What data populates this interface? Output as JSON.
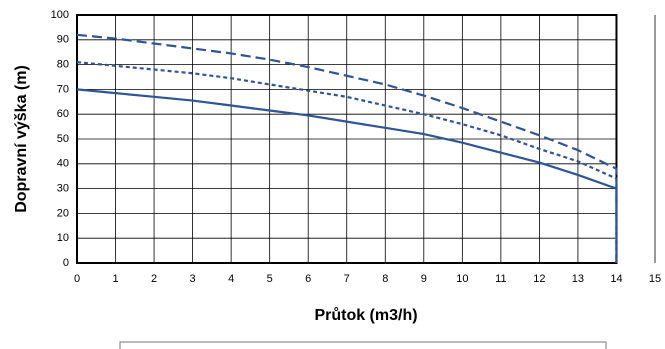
{
  "chart_data": {
    "type": "line",
    "x_label": "Průtok (m3/h)",
    "y_label": "Dopravní výška (m)",
    "xlim": [
      0,
      15
    ],
    "xticks": [
      0,
      1,
      2,
      3,
      4,
      5,
      6,
      7,
      8,
      9,
      10,
      11,
      12,
      13,
      14,
      15
    ],
    "ylim": [
      0,
      100
    ],
    "yticks": [
      0,
      10,
      20,
      30,
      40,
      50,
      60,
      70,
      80,
      90,
      100
    ],
    "grid": true,
    "series": [
      {
        "color": "#2f5597",
        "dash": "solid",
        "x": [
          0,
          1,
          2,
          3,
          4,
          5,
          6,
          7,
          8,
          9,
          10,
          11,
          12,
          13,
          14,
          14
        ],
        "values": [
          70,
          68.5,
          67,
          65.5,
          63.5,
          61.5,
          59.5,
          57,
          54.5,
          52,
          48.5,
          44.5,
          40.5,
          35.5,
          30,
          0
        ]
      },
      {
        "color": "#2f5597",
        "dash": "short",
        "x": [
          0,
          1,
          2,
          3,
          4,
          5,
          6,
          7,
          8,
          9,
          10,
          11,
          12,
          13,
          14,
          14
        ],
        "values": [
          81,
          79.5,
          78,
          76.5,
          74.5,
          72,
          69.5,
          67,
          63.5,
          60,
          56,
          51.5,
          46,
          41,
          34,
          0
        ]
      },
      {
        "color": "#2f5597",
        "dash": "long",
        "x": [
          0,
          1,
          2,
          3,
          4,
          5,
          6,
          7,
          8,
          9,
          10,
          11,
          12,
          13,
          14,
          14
        ],
        "values": [
          92,
          90.5,
          88.5,
          86.5,
          84.5,
          82,
          79,
          75.5,
          72,
          67.5,
          62.5,
          57,
          51.5,
          45.5,
          38,
          0
        ]
      }
    ]
  }
}
